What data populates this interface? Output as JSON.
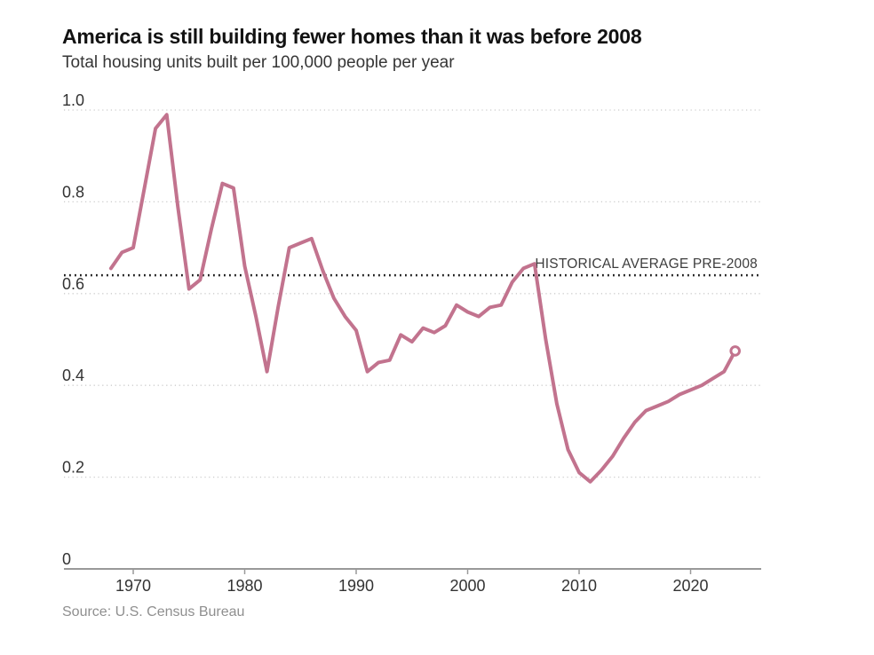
{
  "header": {
    "title": "America is still building fewer homes than it was before 2008",
    "subtitle": "Total housing units built per 100,000 people per year"
  },
  "source": "Source: U.S. Census Bureau",
  "colors": {
    "line": "#c2738e",
    "end_marker_fill": "#ffffff",
    "average_line": "#1a1a1a",
    "gridline": "#cbcbcb",
    "axis": "#999999",
    "title": "#121212",
    "subtitle": "#363636",
    "tick_label": "#333333",
    "annotation": "#3d3d3d",
    "source": "#8f8f8f"
  },
  "chart_data": {
    "type": "line",
    "title": "America is still building fewer homes than it was before 2008",
    "subtitle": "Total housing units built per 100,000 people per year",
    "xlabel": "",
    "ylabel": "",
    "x": [
      1968,
      1969,
      1970,
      1971,
      1972,
      1973,
      1974,
      1975,
      1976,
      1977,
      1978,
      1979,
      1980,
      1981,
      1982,
      1983,
      1984,
      1985,
      1986,
      1987,
      1988,
      1989,
      1990,
      1991,
      1992,
      1993,
      1994,
      1995,
      1996,
      1997,
      1998,
      1999,
      2000,
      2001,
      2002,
      2003,
      2004,
      2005,
      2006,
      2007,
      2008,
      2009,
      2010,
      2011,
      2012,
      2013,
      2014,
      2015,
      2016,
      2017,
      2018,
      2019,
      2020,
      2021,
      2022,
      2023,
      2024
    ],
    "series": [
      {
        "name": "Total housing units built per 100,000 people per year",
        "values": [
          0.655,
          0.69,
          0.7,
          0.83,
          0.96,
          0.99,
          0.79,
          0.61,
          0.63,
          0.74,
          0.84,
          0.83,
          0.66,
          0.55,
          0.43,
          0.57,
          0.7,
          0.71,
          0.72,
          0.65,
          0.59,
          0.55,
          0.52,
          0.43,
          0.45,
          0.455,
          0.51,
          0.495,
          0.525,
          0.515,
          0.53,
          0.575,
          0.56,
          0.55,
          0.57,
          0.575,
          0.625,
          0.655,
          0.665,
          0.5,
          0.36,
          0.26,
          0.21,
          0.19,
          0.215,
          0.245,
          0.285,
          0.32,
          0.345,
          0.355,
          0.365,
          0.38,
          0.39,
          0.4,
          0.415,
          0.43,
          0.475
        ]
      }
    ],
    "average_line": {
      "value": 0.64,
      "label": "HISTORICAL AVERAGE PRE-2008"
    },
    "y_ticks": [
      {
        "value": 1.0,
        "label": "1.0"
      },
      {
        "value": 0.8,
        "label": "0.8"
      },
      {
        "value": 0.6,
        "label": "0.6"
      },
      {
        "value": 0.4,
        "label": "0.4"
      },
      {
        "value": 0.2,
        "label": "0.2"
      },
      {
        "value": 0,
        "label": "0"
      }
    ],
    "x_ticks": [
      {
        "value": 1970,
        "label": "1970"
      },
      {
        "value": 1980,
        "label": "1980"
      },
      {
        "value": 1990,
        "label": "1990"
      },
      {
        "value": 2000,
        "label": "2000"
      },
      {
        "value": 2010,
        "label": "2010"
      },
      {
        "value": 2020,
        "label": "2020"
      }
    ],
    "ylim": [
      0,
      1.0
    ],
    "xlim": [
      1963.8,
      2026.3
    ],
    "grid": "horizontal-dotted",
    "legend_position": "none",
    "end_marker": "open-circle"
  }
}
